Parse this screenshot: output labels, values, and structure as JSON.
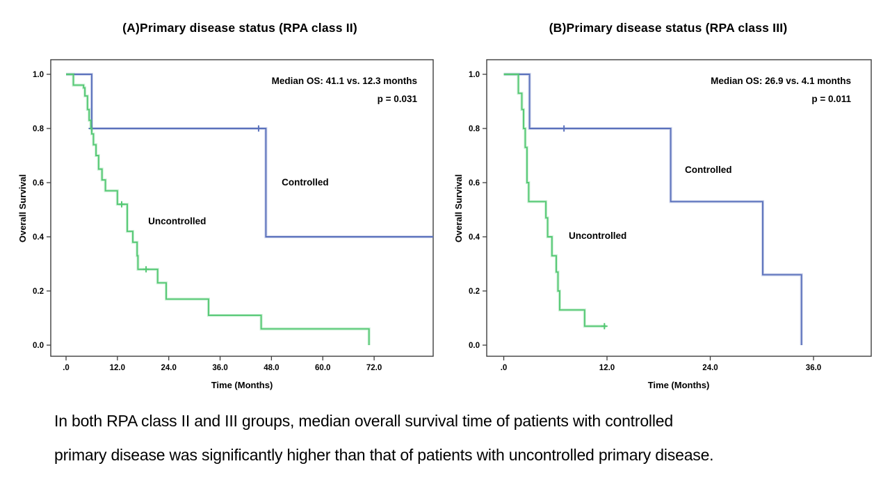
{
  "caption": {
    "line1": "In both RPA class II and III groups, median overall survival time of patients with controlled",
    "line2": "primary disease was significantly higher than that of patients with uncontrolled primary disease."
  },
  "chart_data": [
    {
      "type": "line",
      "subtype": "kaplan-meier-step",
      "title": "(A)Primary disease status (RPA class II)",
      "xlabel": "Time (Months)",
      "ylabel": "Overall Survival",
      "annotation": {
        "median_text": "Median OS: 41.1 vs. 12.3 months",
        "p_text": "p = 0.031"
      },
      "x_ticks": [
        ".0",
        "12.0",
        "24.0",
        "36.0",
        "48.0",
        "60.0",
        "72.0"
      ],
      "x_tick_values": [
        0,
        12,
        24,
        36,
        48,
        60,
        72
      ],
      "y_ticks": [
        "0.0",
        "0.2",
        "0.4",
        "0.6",
        "0.8",
        "1.0"
      ],
      "y_tick_values": [
        0,
        0.2,
        0.4,
        0.6,
        0.8,
        1.0
      ],
      "ylim": [
        0,
        1
      ],
      "xlim": [
        0,
        85.8
      ],
      "grid": false,
      "legend_position": "inline-labels",
      "series": [
        {
          "name": "Controlled",
          "color": "#5a71bc",
          "start": [
            0,
            1.0
          ],
          "steps": [
            [
              6.0,
              0.8
            ],
            [
              46.7,
              0.4
            ]
          ],
          "extend_to": 85.8,
          "censors": [
            [
              6.0,
              0.8
            ],
            [
              45.0,
              0.8
            ]
          ],
          "label_at": [
            50.4,
            0.59
          ]
        },
        {
          "name": "Uncontrolled",
          "color": "#54c873",
          "start": [
            0,
            1.0
          ],
          "steps": [
            [
              1.7,
              0.96
            ],
            [
              4.1,
              0.95
            ],
            [
              4.4,
              0.92
            ],
            [
              5.0,
              0.87
            ],
            [
              5.4,
              0.83
            ],
            [
              5.8,
              0.8
            ],
            [
              6.0,
              0.78
            ],
            [
              6.4,
              0.74
            ],
            [
              7.0,
              0.7
            ],
            [
              7.6,
              0.65
            ],
            [
              8.4,
              0.61
            ],
            [
              9.2,
              0.57
            ],
            [
              12.0,
              0.52
            ],
            [
              14.3,
              0.42
            ],
            [
              15.6,
              0.38
            ],
            [
              16.6,
              0.33
            ],
            [
              16.8,
              0.28
            ],
            [
              21.4,
              0.23
            ],
            [
              23.4,
              0.17
            ],
            [
              33.3,
              0.11
            ],
            [
              45.6,
              0.06
            ],
            [
              70.8,
              0.0
            ]
          ],
          "extend_to": null,
          "censors": [
            [
              13.0,
              0.52
            ],
            [
              18.7,
              0.28
            ]
          ],
          "label_at": [
            19.2,
            0.446
          ]
        }
      ]
    },
    {
      "type": "line",
      "subtype": "kaplan-meier-step",
      "title": "(B)Primary disease status (RPA class III)",
      "xlabel": "Time (Months)",
      "ylabel": "Overall Survival",
      "annotation": {
        "median_text": "Median OS: 26.9 vs. 4.1 months",
        "p_text": "p = 0.011"
      },
      "x_ticks": [
        ".0",
        "12.0",
        "24.0",
        "36.0"
      ],
      "x_tick_values": [
        0,
        12,
        24,
        36
      ],
      "y_ticks": [
        "0.0",
        "0.2",
        "0.4",
        "0.6",
        "0.8",
        "1.0"
      ],
      "y_tick_values": [
        0,
        0.2,
        0.4,
        0.6,
        0.8,
        1.0
      ],
      "ylim": [
        0,
        1
      ],
      "xlim": [
        0,
        42.7
      ],
      "grid": false,
      "legend_position": "inline-labels",
      "series": [
        {
          "name": "Controlled",
          "color": "#5a71bc",
          "start": [
            0,
            1.0
          ],
          "steps": [
            [
              3.0,
              0.8
            ],
            [
              19.4,
              0.53
            ],
            [
              30.1,
              0.26
            ],
            [
              34.6,
              0.0
            ]
          ],
          "extend_to": null,
          "censors": [
            [
              7.0,
              0.8
            ]
          ],
          "label_at": [
            21.05,
            0.636
          ]
        },
        {
          "name": "Uncontrolled",
          "color": "#54c873",
          "start": [
            0,
            1.0
          ],
          "steps": [
            [
              1.7,
              0.93
            ],
            [
              2.1,
              0.87
            ],
            [
              2.3,
              0.8
            ],
            [
              2.5,
              0.73
            ],
            [
              2.7,
              0.6
            ],
            [
              2.9,
              0.53
            ],
            [
              4.9,
              0.47
            ],
            [
              5.1,
              0.4
            ],
            [
              5.6,
              0.33
            ],
            [
              6.1,
              0.27
            ],
            [
              6.3,
              0.2
            ],
            [
              6.5,
              0.13
            ],
            [
              9.4,
              0.07
            ]
          ],
          "extend_to": 11.9,
          "censors": [
            [
              11.7,
              0.07
            ]
          ],
          "label_at": [
            7.56,
            0.392
          ]
        }
      ]
    }
  ]
}
